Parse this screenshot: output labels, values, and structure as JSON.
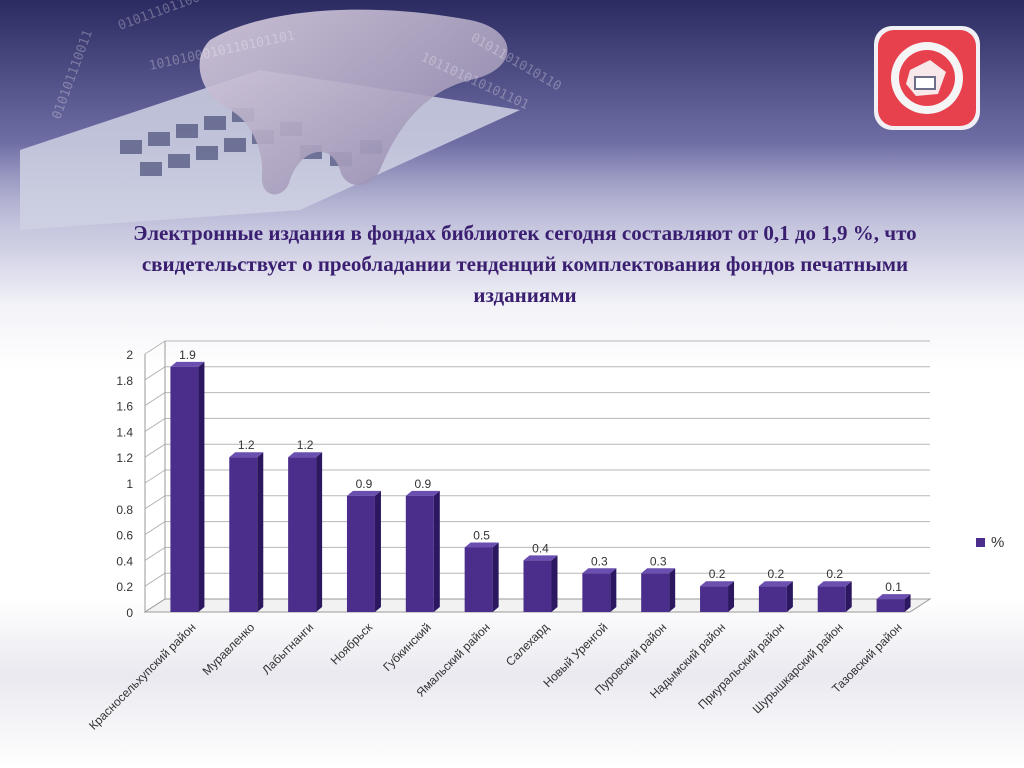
{
  "title": "Электронные издания в фондах библиотек сегодня составляют от 0,1 до 1,9 %, что свидетельствует о преобладании тенденций комплектования фондов печатными изданиями",
  "logo": {
    "name": "library-network-logo"
  },
  "colors": {
    "bar": "#4b2e8c",
    "bar_dark": "#2c1860",
    "bar_top": "#6a4fb0",
    "title": "#3a1f70"
  },
  "chart_data": {
    "type": "bar",
    "categories": [
      "Красносельхупский район",
      "Муравленко",
      "Лабытнанги",
      "Ноябрьск",
      "Губкинский",
      "Ямальский район",
      "Салехард",
      "Новый Уренгой",
      "Пуровский район",
      "Надымский район",
      "Приуральский район",
      "Шурышкарский район",
      "Тазовский район"
    ],
    "series": [
      {
        "name": "%",
        "values": [
          1.9,
          1.2,
          1.2,
          0.9,
          0.9,
          0.5,
          0.4,
          0.3,
          0.3,
          0.2,
          0.2,
          0.2,
          0.1
        ]
      }
    ],
    "value_labels": [
      "1.9",
      "1.2",
      "1.2",
      "0.9",
      "0.9",
      "0.5",
      "0.4",
      "0.3",
      "0.3",
      "0.2",
      "0.2",
      "0.2",
      "0.1"
    ],
    "ylim": [
      0,
      2
    ],
    "yticks": [
      "0",
      "0.2",
      "0.4",
      "0.6",
      "0.8",
      "1",
      "1.2",
      "1.4",
      "1.6",
      "1.8",
      "2"
    ],
    "grid": true,
    "legend": "right",
    "xlabel": "",
    "ylabel": ""
  }
}
